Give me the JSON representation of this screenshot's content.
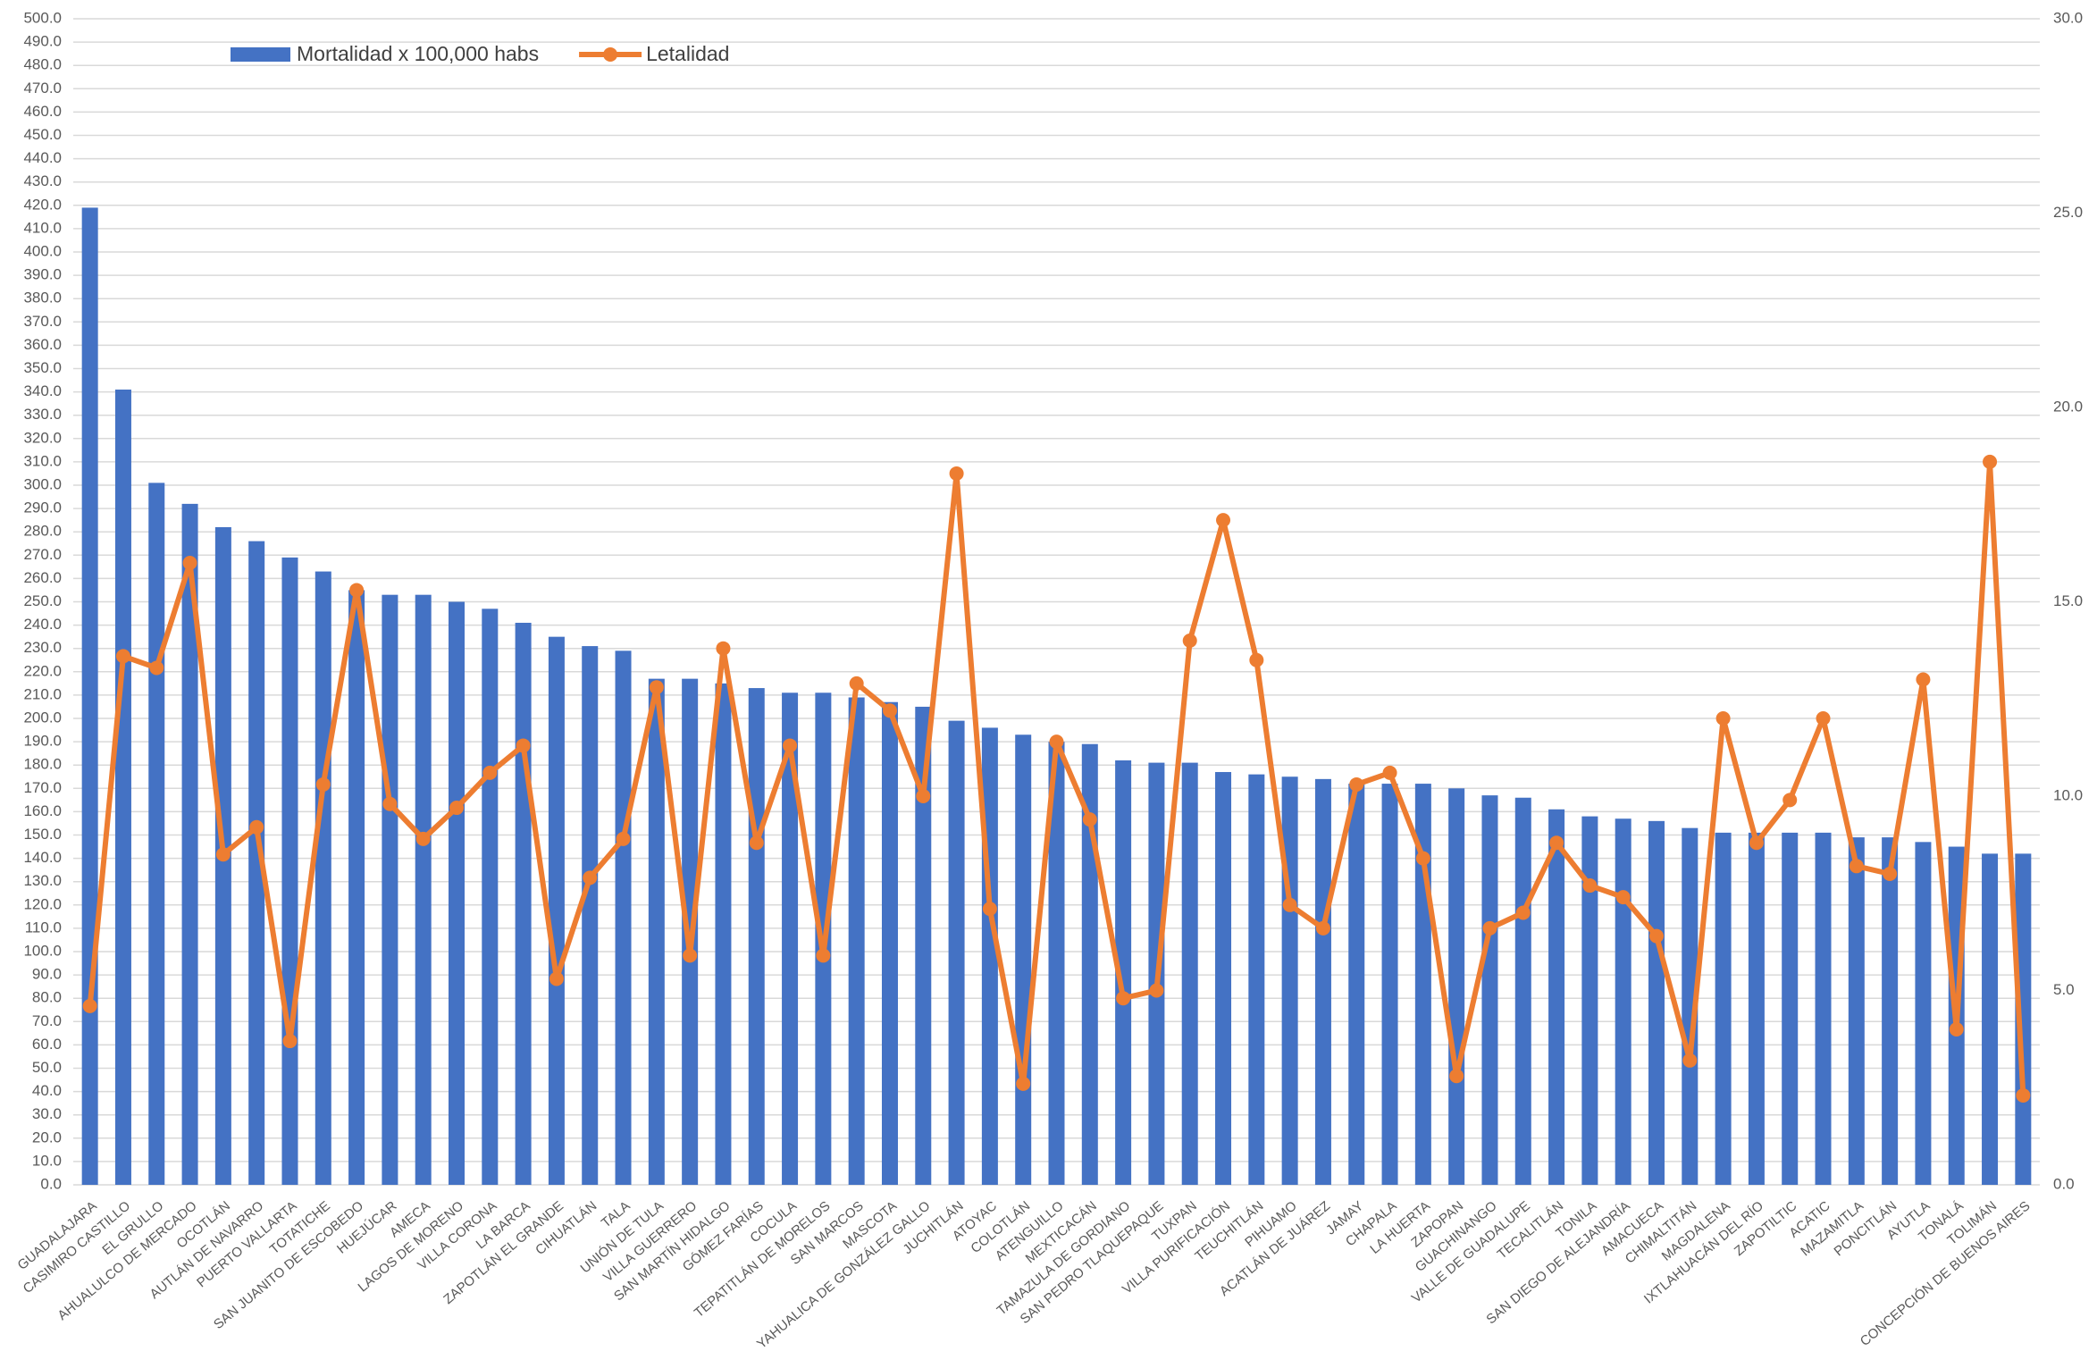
{
  "chart_data": {
    "type": "bar_line",
    "categories": [
      "GUADALAJARA",
      "CASIMIRO CASTILLO",
      "EL GRULLO",
      "AHUALULCO DE MERCADO",
      "OCOTLÁN",
      "AUTLÁN DE NAVARRO",
      "PUERTO VALLARTA",
      "TOTATICHE",
      "SAN JUANITO DE ESCOBEDO",
      "HUEJÚCAR",
      "AMECA",
      "LAGOS DE MORENO",
      "VILLA CORONA",
      "LA BARCA",
      "ZAPOTLÁN EL GRANDE",
      "CIHUATLÁN",
      "TALA",
      "UNIÓN DE TULA",
      "VILLA GUERRERO",
      "SAN MARTÍN HIDALGO",
      "GÓMEZ FARÍAS",
      "COCULA",
      "TEPATITLÁN DE MORELOS",
      "SAN MARCOS",
      "MASCOTA",
      "YAHUALICA DE GONZÁLEZ GALLO",
      "JUCHITLÁN",
      "ATOYAC",
      "COLOTLÁN",
      "ATENGUILLO",
      "MEXTICACÁN",
      "TAMAZULA DE GORDIANO",
      "SAN PEDRO TLAQUEPAQUE",
      "TUXPAN",
      "VILLA PURIFICACIÓN",
      "TEUCHITLÁN",
      "PIHUAMO",
      "ACATLÁN DE JUÁREZ",
      "JAMAY",
      "CHAPALA",
      "LA HUERTA",
      "ZAPOPAN",
      "GUACHINANGO",
      "VALLE DE GUADALUPE",
      "TECALITLÁN",
      "TONILA",
      "SAN DIEGO DE ALEJANDRÍA",
      "AMACUECA",
      "CHIMALTITÁN",
      "MAGDALENA",
      "IXTLAHUACÁN DEL RÍO",
      "ZAPOTILTIC",
      "ACATIC",
      "MAZAMITLA",
      "PONCITLÁN",
      "AYUTLA",
      "TONALÁ",
      "TOLIMÁN",
      "CONCEPCIÓN DE BUENOS AIRES"
    ],
    "series": [
      {
        "name": "Mortalidad x 100,000 habs",
        "color": "#4472c4",
        "kind": "bar",
        "axis": "y",
        "values": [
          419,
          341,
          301,
          292,
          282,
          276,
          269,
          263,
          255,
          253,
          253,
          250,
          247,
          241,
          235,
          231,
          229,
          217,
          217,
          215,
          213,
          211,
          211,
          209,
          207,
          205,
          199,
          196,
          193,
          190,
          189,
          182,
          181,
          181,
          177,
          176,
          175,
          174,
          172,
          172,
          172,
          170,
          167,
          166,
          161,
          158,
          157,
          156,
          153,
          151,
          151,
          151,
          151,
          149,
          149,
          147,
          145,
          142,
          142
        ]
      },
      {
        "name": "Letalidad",
        "color": "#ed7d31",
        "kind": "line",
        "axis": "y2",
        "values": [
          4.6,
          13.6,
          13.3,
          16.0,
          8.5,
          9.2,
          3.7,
          10.3,
          15.3,
          9.8,
          8.9,
          9.7,
          10.6,
          11.3,
          5.3,
          7.9,
          8.9,
          12.8,
          5.9,
          13.8,
          8.8,
          11.3,
          5.9,
          12.9,
          12.2,
          10.0,
          18.3,
          7.1,
          2.6,
          11.4,
          9.4,
          4.8,
          5.0,
          14.0,
          17.1,
          13.5,
          7.2,
          6.6,
          10.3,
          10.6,
          8.4,
          2.8,
          6.6,
          7.0,
          8.8,
          7.7,
          7.4,
          6.4,
          3.2,
          12.0,
          8.8,
          9.9,
          12.0,
          8.2,
          8.0,
          13.0,
          4.0,
          18.6,
          2.3
        ]
      }
    ],
    "ylim": [
      0,
      500
    ],
    "yticks": [
      {
        "value": 0,
        "label": "0.0"
      },
      {
        "value": 10,
        "label": "10.0"
      },
      {
        "value": 20,
        "label": "20.0"
      },
      {
        "value": 30,
        "label": "30.0"
      },
      {
        "value": 40,
        "label": "40.0"
      },
      {
        "value": 50,
        "label": "50.0"
      },
      {
        "value": 60,
        "label": "60.0"
      },
      {
        "value": 70,
        "label": "70.0"
      },
      {
        "value": 80,
        "label": "80.0"
      },
      {
        "value": 90,
        "label": "90.0"
      },
      {
        "value": 100,
        "label": "100.0"
      },
      {
        "value": 110,
        "label": "110.0"
      },
      {
        "value": 120,
        "label": "120.0"
      },
      {
        "value": 130,
        "label": "130.0"
      },
      {
        "value": 140,
        "label": "140.0"
      },
      {
        "value": 150,
        "label": "150.0"
      },
      {
        "value": 160,
        "label": "160.0"
      },
      {
        "value": 170,
        "label": "170.0"
      },
      {
        "value": 180,
        "label": "180.0"
      },
      {
        "value": 190,
        "label": "190.0"
      },
      {
        "value": 200,
        "label": "200.0"
      },
      {
        "value": 210,
        "label": "210.0"
      },
      {
        "value": 220,
        "label": "220.0"
      },
      {
        "value": 230,
        "label": "230.0"
      },
      {
        "value": 240,
        "label": "240.0"
      },
      {
        "value": 250,
        "label": "250.0"
      },
      {
        "value": 260,
        "label": "260.0"
      },
      {
        "value": 270,
        "label": "270.0"
      },
      {
        "value": 280,
        "label": "280.0"
      },
      {
        "value": 290,
        "label": "290.0"
      },
      {
        "value": 300,
        "label": "300.0"
      },
      {
        "value": 310,
        "label": "310.0"
      },
      {
        "value": 320,
        "label": "320.0"
      },
      {
        "value": 330,
        "label": "330.0"
      },
      {
        "value": 340,
        "label": "340.0"
      },
      {
        "value": 350,
        "label": "350.0"
      },
      {
        "value": 360,
        "label": "360.0"
      },
      {
        "value": 370,
        "label": "370.0"
      },
      {
        "value": 380,
        "label": "380.0"
      },
      {
        "value": 390,
        "label": "390.0"
      },
      {
        "value": 400,
        "label": "400.0"
      },
      {
        "value": 410,
        "label": "410.0"
      },
      {
        "value": 420,
        "label": "420.0"
      },
      {
        "value": 430,
        "label": "430.0"
      },
      {
        "value": 440,
        "label": "440.0"
      },
      {
        "value": 450,
        "label": "450.0"
      },
      {
        "value": 460,
        "label": "460.0"
      },
      {
        "value": 470,
        "label": "470.0"
      },
      {
        "value": 480,
        "label": "480.0"
      },
      {
        "value": 490,
        "label": "490.0"
      },
      {
        "value": 500,
        "label": "500.0"
      }
    ],
    "y2lim": [
      0,
      30
    ],
    "y2ticks": [
      {
        "value": 0,
        "label": "0.0"
      },
      {
        "value": 5,
        "label": "5.0"
      },
      {
        "value": 10,
        "label": "10.0"
      },
      {
        "value": 15,
        "label": "15.0"
      },
      {
        "value": 20,
        "label": "20.0"
      },
      {
        "value": 25,
        "label": "25.0"
      },
      {
        "value": 30,
        "label": "30.0"
      }
    ],
    "grid": true,
    "legend": "top-left"
  }
}
